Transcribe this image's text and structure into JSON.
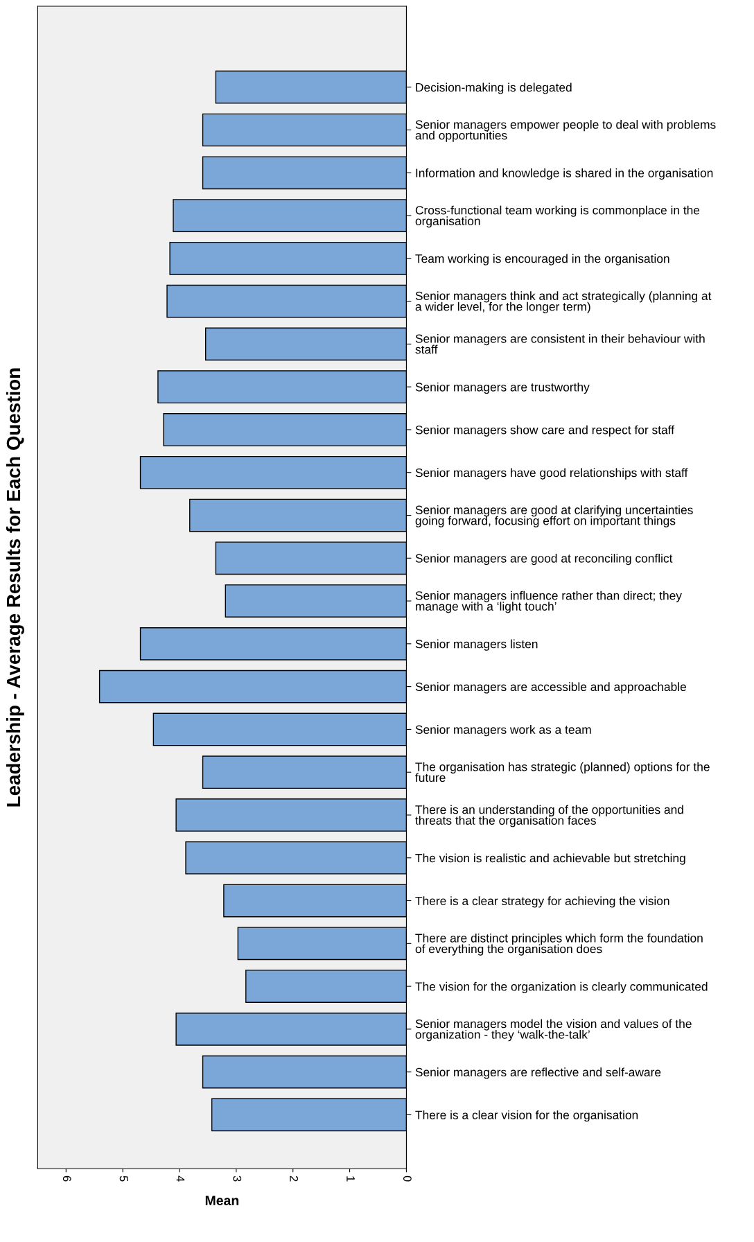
{
  "chart_data": {
    "type": "bar",
    "orientation": "horizontal",
    "xlabel": "Mean",
    "ylabel": "Leadership - Average Results for Each Question",
    "categories": [
      "Decision-making is delegated",
      "Senior managers empower people to deal with problems\nand opportunities",
      "Information and knowledge is shared in the organisation",
      "Cross-functional team working is commonplace in the\norganisation",
      "Team working is encouraged in the organisation",
      "Senior managers think and act strategically (planning at\na wider level, for the longer term)",
      "Senior managers are consistent in their behaviour with\nstaff",
      "Senior managers are trustworthy",
      "Senior managers show care and respect for staff",
      "Senior managers have good relationships with staff",
      "Senior managers are good at clarifying uncertainties\ngoing forward, focusing effort on important things",
      "Senior managers are good at reconciling conflict",
      "Senior managers influence rather than direct; they\nmanage with a ‘light touch’",
      "Senior managers listen",
      "Senior managers are accessible and approachable",
      "Senior managers work as a team",
      "The organisation has strategic (planned) options for the\nfuture",
      "There is an understanding of the opportunities and\nthreats that the organisation faces",
      "The vision is realistic and achievable but stretching",
      "There is a clear strategy for achieving the vision",
      "There are distinct principles which form the foundation\nof everything the organisation does",
      "The vision for the organization is clearly communicated",
      "Senior managers model the vision and values of the\norganization - they ‘walk-the-talk’",
      "Senior managers are reflective and self-aware",
      "There is a clear vision for the organisation"
    ],
    "values": [
      3.36,
      3.59,
      3.59,
      4.11,
      4.17,
      4.22,
      3.54,
      4.38,
      4.28,
      4.69,
      3.82,
      3.36,
      3.19,
      4.69,
      5.41,
      4.46,
      3.59,
      4.06,
      3.89,
      3.22,
      2.97,
      2.83,
      4.06,
      3.59,
      3.43
    ],
    "color": "#7aa7d8",
    "xlim": [
      6.5,
      0
    ],
    "xticks": [
      6,
      5,
      4,
      3,
      2,
      1,
      0
    ],
    "grid": false,
    "legend": false
  }
}
